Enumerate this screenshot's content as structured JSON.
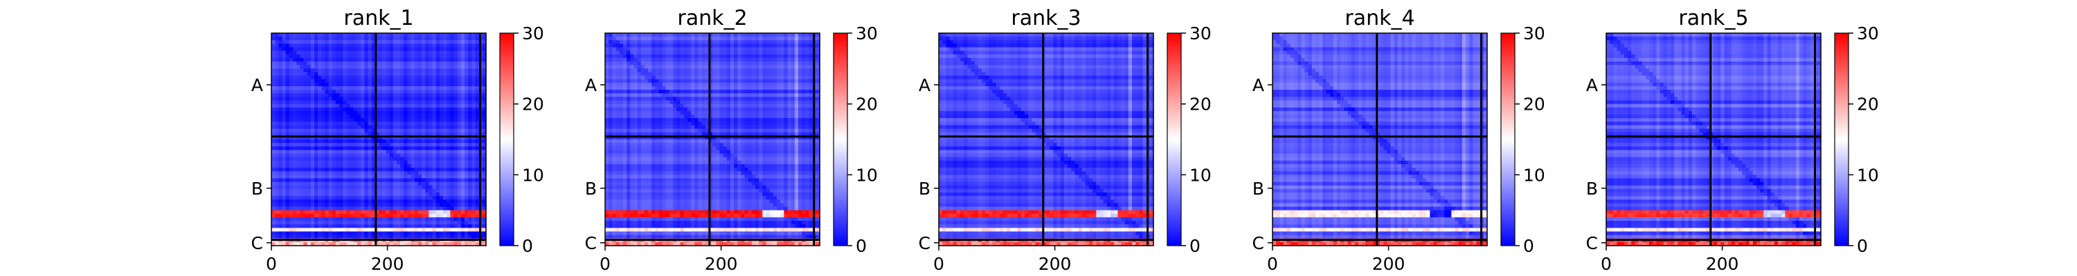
{
  "chart_data": [
    {
      "type": "heatmap",
      "title": "rank_1",
      "xlabel": "",
      "ylabel": "",
      "x_ticks": [
        0,
        200
      ],
      "y_ticks": [
        "A",
        "B",
        "C"
      ],
      "chain_lengths": [
        180,
        180,
        10
      ],
      "xlim": [
        0,
        370
      ],
      "colorbar": {
        "range": [
          0,
          30
        ],
        "ticks": [
          0,
          10,
          20,
          30
        ],
        "colormap": "bwr"
      },
      "description_values": {
        "background_error": 3,
        "hot_row": 28,
        "c_band": 20
      }
    },
    {
      "type": "heatmap",
      "title": "rank_2",
      "xlabel": "",
      "ylabel": "",
      "x_ticks": [
        0,
        200
      ],
      "y_ticks": [
        "A",
        "B",
        "C"
      ],
      "chain_lengths": [
        180,
        180,
        10
      ],
      "xlim": [
        0,
        370
      ],
      "colorbar": {
        "range": [
          0,
          30
        ],
        "ticks": [
          0,
          10,
          20,
          30
        ],
        "colormap": "bwr"
      },
      "description_values": {
        "background_error": 4,
        "hot_row": 29,
        "c_band": 22
      }
    },
    {
      "type": "heatmap",
      "title": "rank_3",
      "xlabel": "",
      "ylabel": "",
      "x_ticks": [
        0,
        200
      ],
      "y_ticks": [
        "A",
        "B",
        "C"
      ],
      "chain_lengths": [
        180,
        180,
        10
      ],
      "xlim": [
        0,
        370
      ],
      "colorbar": {
        "range": [
          0,
          30
        ],
        "ticks": [
          0,
          10,
          20,
          30
        ],
        "colormap": "bwr"
      },
      "description_values": {
        "background_error": 4,
        "hot_row": 28,
        "c_band": 24
      }
    },
    {
      "type": "heatmap",
      "title": "rank_4",
      "xlabel": "",
      "ylabel": "",
      "x_ticks": [
        0,
        200
      ],
      "y_ticks": [
        "A",
        "B",
        "C"
      ],
      "chain_lengths": [
        180,
        180,
        10
      ],
      "xlim": [
        0,
        370
      ],
      "colorbar": {
        "range": [
          0,
          30
        ],
        "ticks": [
          0,
          10,
          20,
          30
        ],
        "colormap": "bwr"
      },
      "description_values": {
        "background_error": 5,
        "hot_row": 16,
        "c_band": 26
      }
    },
    {
      "type": "heatmap",
      "title": "rank_5",
      "xlabel": "",
      "ylabel": "",
      "x_ticks": [
        0,
        200
      ],
      "y_ticks": [
        "A",
        "B",
        "C"
      ],
      "chain_lengths": [
        180,
        180,
        10
      ],
      "xlim": [
        0,
        370
      ],
      "colorbar": {
        "range": [
          0,
          30
        ],
        "ticks": [
          0,
          10,
          20,
          30
        ],
        "colormap": "bwr"
      },
      "description_values": {
        "background_error": 5,
        "hot_row": 27,
        "c_band": 27
      }
    }
  ]
}
